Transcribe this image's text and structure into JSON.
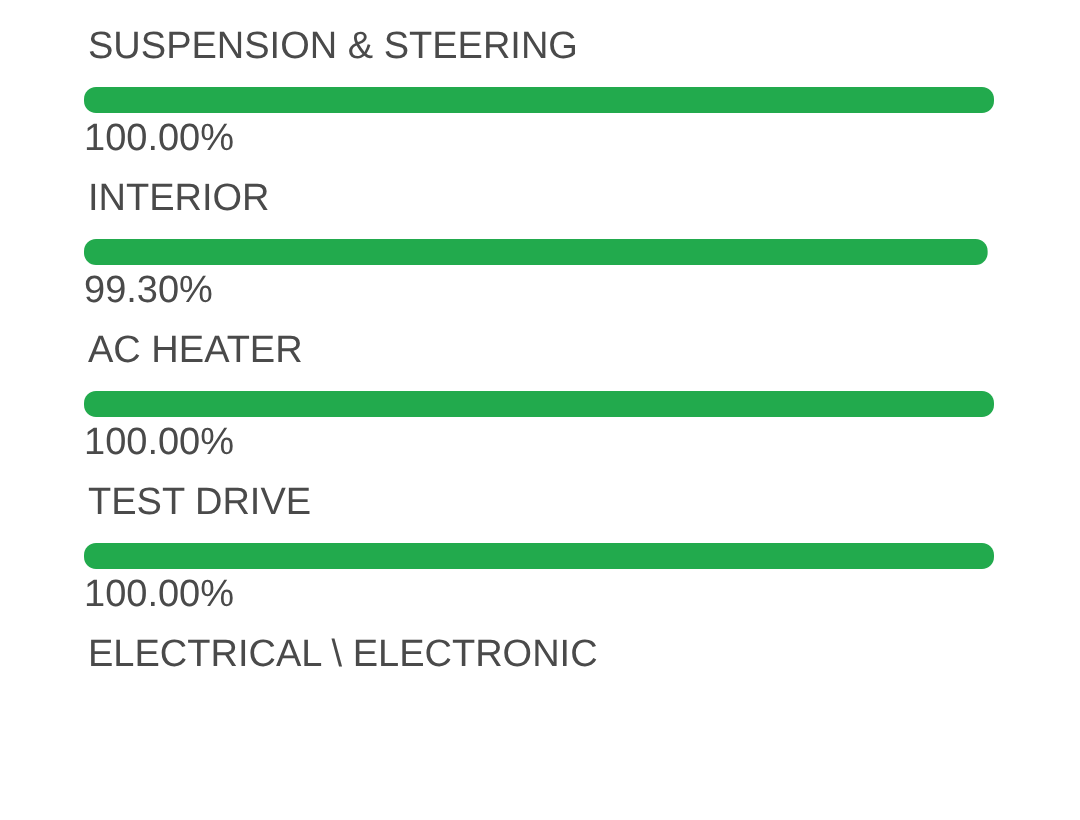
{
  "chart_data": {
    "type": "bar",
    "orientation": "horizontal",
    "categories": [
      "SUSPENSION & STEERING",
      "INTERIOR",
      "AC HEATER",
      "TEST DRIVE",
      "ELECTRICAL \\ ELECTRONIC"
    ],
    "values": [
      100,
      99.3,
      100,
      100,
      null
    ],
    "value_labels": [
      "100.00%",
      "99.30%",
      "100.00%",
      "100.00%",
      null
    ],
    "color": "#22aa4d"
  }
}
